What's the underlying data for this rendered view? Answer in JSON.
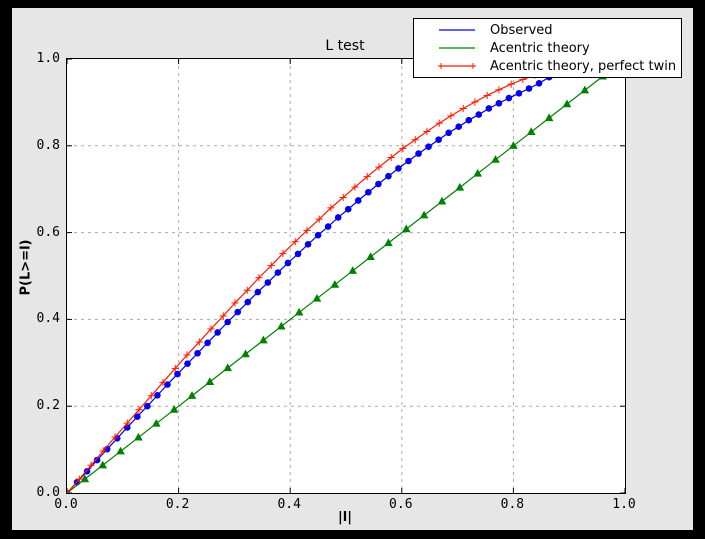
{
  "figure": {
    "outer_background": "#000000",
    "background": "#e6e6e6",
    "plot_background": "#ffffff",
    "grid_color": "#aaaaaa",
    "spine_color": "#000000"
  },
  "chart_data": {
    "type": "line",
    "title": "L test",
    "xlabel": "|l|",
    "ylabel": "P(L>=l)",
    "xlim": [
      0.0,
      1.0
    ],
    "ylim": [
      0.0,
      1.0
    ],
    "xtick_values": [
      0.0,
      0.2,
      0.4,
      0.6,
      0.8,
      1.0
    ],
    "ytick_values": [
      0.0,
      0.2,
      0.4,
      0.6,
      0.8,
      1.0
    ],
    "xtick_labels": [
      "0.0",
      "0.2",
      "0.4",
      "0.6",
      "0.8",
      "1.0"
    ],
    "ytick_labels": [
      "0.0",
      "0.2",
      "0.4",
      "0.6",
      "0.8",
      "1.0"
    ],
    "grid": true,
    "grid_tick_positions": [
      0.2,
      0.4,
      0.6,
      0.8
    ],
    "legend_position": "upper right",
    "series": [
      {
        "name": "Observed",
        "color": "#0000ee",
        "marker": "circle",
        "x": [
          0,
          0.018,
          0.036,
          0.054,
          0.072,
          0.09,
          0.108,
          0.126,
          0.144,
          0.162,
          0.18,
          0.198,
          0.216,
          0.234,
          0.252,
          0.27,
          0.288,
          0.306,
          0.324,
          0.342,
          0.36,
          0.378,
          0.396,
          0.414,
          0.432,
          0.45,
          0.468,
          0.486,
          0.504,
          0.522,
          0.54,
          0.558,
          0.576,
          0.594,
          0.612,
          0.63,
          0.648,
          0.666,
          0.684,
          0.702,
          0.72,
          0.738,
          0.756,
          0.774,
          0.792,
          0.81,
          0.828,
          0.846,
          0.864
        ],
        "y": [
          0,
          0.025,
          0.05,
          0.076,
          0.101,
          0.126,
          0.151,
          0.176,
          0.2,
          0.225,
          0.25,
          0.274,
          0.298,
          0.322,
          0.346,
          0.37,
          0.394,
          0.417,
          0.44,
          0.463,
          0.485,
          0.508,
          0.53,
          0.551,
          0.573,
          0.594,
          0.614,
          0.635,
          0.654,
          0.674,
          0.693,
          0.712,
          0.73,
          0.748,
          0.765,
          0.782,
          0.798,
          0.814,
          0.83,
          0.844,
          0.859,
          0.872,
          0.886,
          0.898,
          0.91,
          0.921,
          0.932,
          0.944,
          0.958
        ]
      },
      {
        "name": "Acentric theory",
        "color": "#008000",
        "marker": "triangle-up",
        "x": [
          0,
          0.032,
          0.064,
          0.096,
          0.128,
          0.16,
          0.192,
          0.224,
          0.256,
          0.288,
          0.32,
          0.352,
          0.384,
          0.416,
          0.448,
          0.48,
          0.512,
          0.544,
          0.576,
          0.608,
          0.64,
          0.672,
          0.704,
          0.736,
          0.768,
          0.8,
          0.832,
          0.864,
          0.896,
          0.928,
          0.96
        ],
        "y": [
          0,
          0.032,
          0.064,
          0.096,
          0.128,
          0.16,
          0.192,
          0.224,
          0.256,
          0.288,
          0.32,
          0.352,
          0.384,
          0.416,
          0.448,
          0.48,
          0.512,
          0.544,
          0.576,
          0.608,
          0.64,
          0.672,
          0.704,
          0.736,
          0.768,
          0.8,
          0.832,
          0.864,
          0.896,
          0.928,
          0.96
        ]
      },
      {
        "name": "Acentric theory, perfect twin",
        "color": "#ff1a00",
        "marker": "plus",
        "x": [
          0,
          0.022,
          0.043,
          0.065,
          0.086,
          0.108,
          0.129,
          0.151,
          0.172,
          0.194,
          0.215,
          0.237,
          0.258,
          0.28,
          0.301,
          0.323,
          0.344,
          0.366,
          0.387,
          0.409,
          0.43,
          0.452,
          0.473,
          0.495,
          0.516,
          0.538,
          0.559,
          0.581,
          0.602,
          0.624,
          0.645,
          0.667,
          0.688,
          0.71,
          0.731,
          0.753,
          0.774,
          0.796,
          0.817,
          0.839,
          0.86
        ],
        "y": [
          0,
          0.032,
          0.064,
          0.097,
          0.129,
          0.161,
          0.192,
          0.224,
          0.255,
          0.287,
          0.318,
          0.348,
          0.378,
          0.408,
          0.438,
          0.467,
          0.496,
          0.524,
          0.552,
          0.579,
          0.605,
          0.631,
          0.657,
          0.681,
          0.705,
          0.729,
          0.751,
          0.773,
          0.794,
          0.814,
          0.833,
          0.852,
          0.869,
          0.886,
          0.901,
          0.916,
          0.929,
          0.942,
          0.953,
          0.963,
          0.972
        ]
      }
    ]
  }
}
